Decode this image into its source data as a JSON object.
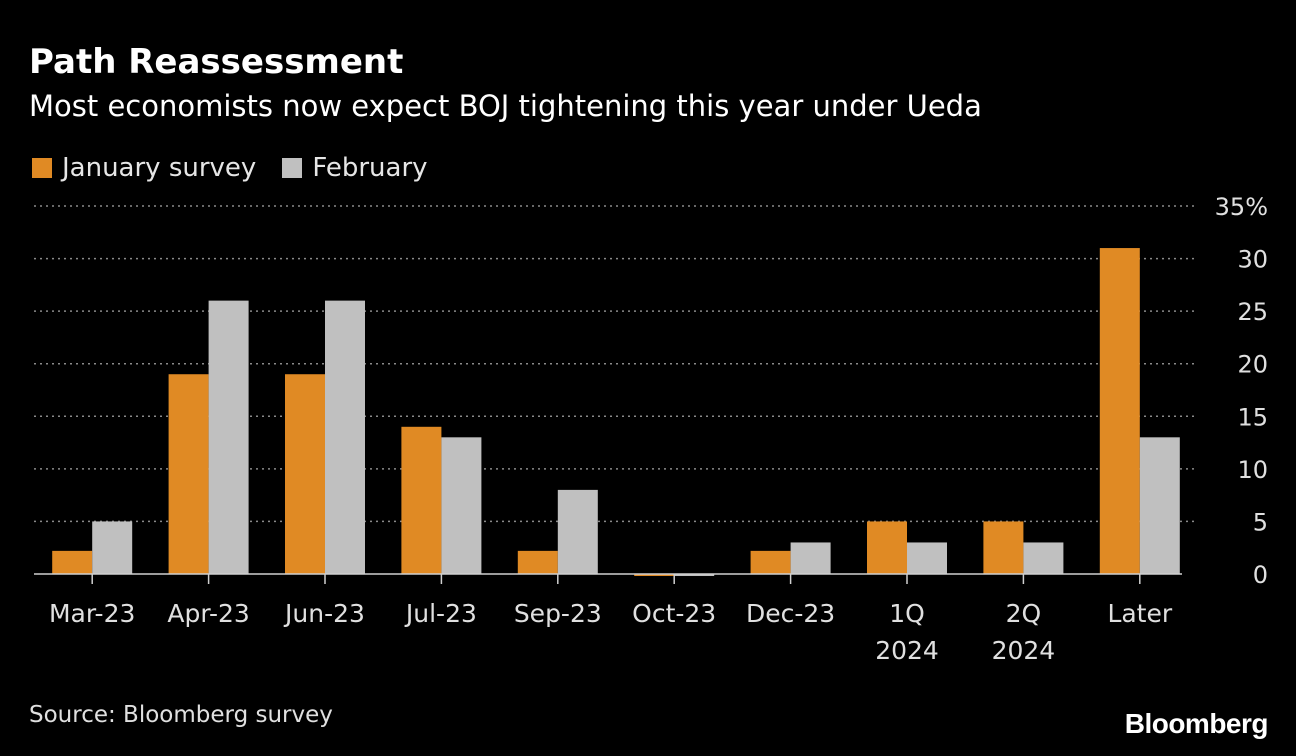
{
  "header": {
    "title": "Path Reassessment",
    "subtitle": "Most economists now expect BOJ tightening this year under Ueda"
  },
  "legend": [
    {
      "label": "January survey",
      "color": "#e08a24"
    },
    {
      "label": "February",
      "color": "#c0c0c0"
    }
  ],
  "chart_data": {
    "type": "bar",
    "categories": [
      "Mar-23",
      "Apr-23",
      "Jun-23",
      "Jul-23",
      "Sep-23",
      "Oct-23",
      "Dec-23",
      "1Q\n2024",
      "2Q\n2024",
      "Later"
    ],
    "series": [
      {
        "name": "January survey",
        "color": "#e08a24",
        "values": [
          2.2,
          19.0,
          19.0,
          14.0,
          2.2,
          0.0,
          2.2,
          5.0,
          5.0,
          31.0
        ]
      },
      {
        "name": "February",
        "color": "#c0c0c0",
        "values": [
          5.0,
          26.0,
          26.0,
          13.0,
          8.0,
          0.0,
          3.0,
          3.0,
          3.0,
          13.0
        ]
      }
    ],
    "title": "Path Reassessment",
    "subtitle": "Most economists now expect BOJ tightening this year under Ueda",
    "ylim": [
      0,
      35
    ],
    "yticks": [
      0,
      5,
      10,
      15,
      20,
      25,
      30,
      35
    ],
    "ytick_labels": [
      "0",
      "5",
      "10",
      "15",
      "20",
      "25",
      "30",
      "35%"
    ],
    "y_axis_position": "right",
    "grid": true,
    "legend_position": "top-left"
  },
  "footer": {
    "source": "Source: Bloomberg survey",
    "logo": "Bloomberg"
  }
}
